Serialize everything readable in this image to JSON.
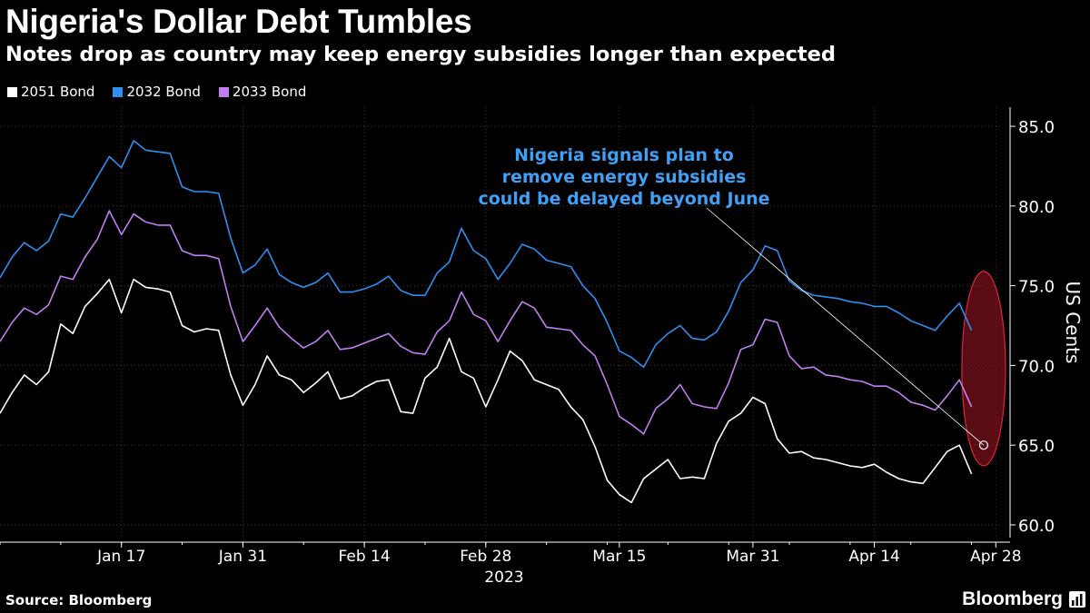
{
  "header": {
    "title": "Nigeria's Dollar Debt Tumbles",
    "subtitle": "Notes drop as country may keep energy subsidies longer than expected"
  },
  "footer": {
    "source": "Source: Bloomberg",
    "brand": "Bloomberg"
  },
  "colors": {
    "background": "#000000",
    "bond_2051": "#ffffff",
    "bond_2032": "#2f8ff0",
    "bond_2033": "#c07ff0",
    "annotation_text": "#3fa0f5",
    "highlight": "#b81a2a"
  },
  "chart_data": {
    "type": "line",
    "title": "Nigeria's Dollar Debt Tumbles",
    "ylabel": "US Cents",
    "xlabel": "2023",
    "ylim": [
      59.2,
      86.2
    ],
    "yticks": [
      "85.0",
      "80.0",
      "75.0",
      "70.0",
      "65.0",
      "60.0"
    ],
    "ytick_values": [
      85,
      80,
      75,
      70,
      65,
      60
    ],
    "xticks": [
      {
        "label": "Jan 17",
        "index": 10
      },
      {
        "label": "Jan 31",
        "index": 20
      },
      {
        "label": "Feb 14",
        "index": 30
      },
      {
        "label": "Feb 28",
        "index": 40
      },
      {
        "label": "Mar 15",
        "index": 51
      },
      {
        "label": "Mar 31",
        "index": 62
      },
      {
        "label": "Apr 14",
        "index": 72
      },
      {
        "label": "Apr 28",
        "index": 82
      }
    ],
    "x_range": [
      0,
      82.5
    ],
    "year_label": "2023",
    "series": [
      {
        "name": "2051 Bond",
        "end_label": "63.2",
        "values": [
          67.0,
          68.3,
          69.4,
          68.8,
          69.6,
          72.6,
          72.0,
          73.7,
          74.5,
          75.4,
          73.3,
          75.4,
          74.9,
          74.8,
          74.6,
          72.5,
          72.1,
          72.3,
          72.2,
          69.4,
          67.5,
          68.8,
          70.6,
          69.4,
          69.1,
          68.3,
          68.9,
          69.6,
          67.9,
          68.1,
          68.6,
          69.0,
          69.1,
          67.1,
          67.0,
          69.2,
          69.9,
          71.7,
          69.6,
          69.2,
          67.4,
          69.1,
          70.9,
          70.3,
          69.1,
          68.8,
          68.5,
          67.4,
          66.6,
          64.9,
          62.8,
          61.9,
          61.4,
          62.9,
          63.5,
          64.1,
          62.9,
          63.0,
          62.9,
          65.1,
          66.5,
          67.0,
          68.0,
          67.6,
          65.4,
          64.5,
          64.6,
          64.2,
          64.1,
          63.9,
          63.7,
          63.6,
          63.8,
          63.3,
          62.9,
          62.7,
          62.6,
          63.6,
          64.6,
          65.0,
          63.2
        ],
        "end_index": 82
      },
      {
        "name": "2032 Bond",
        "end_label": "72.2",
        "values": [
          75.5,
          76.8,
          77.7,
          77.2,
          77.8,
          79.5,
          79.3,
          80.5,
          81.8,
          83.1,
          82.4,
          84.1,
          83.5,
          83.4,
          83.3,
          81.2,
          80.9,
          80.9,
          80.8,
          78.0,
          75.8,
          76.3,
          77.3,
          75.7,
          75.2,
          74.9,
          75.2,
          75.8,
          74.6,
          74.6,
          74.8,
          75.1,
          75.6,
          74.7,
          74.4,
          74.4,
          75.8,
          76.5,
          78.6,
          77.2,
          76.7,
          75.4,
          76.4,
          77.6,
          77.3,
          76.6,
          76.4,
          76.2,
          75.0,
          74.2,
          72.7,
          70.9,
          70.5,
          69.9,
          71.3,
          72.0,
          72.5,
          71.7,
          71.6,
          72.1,
          73.4,
          75.2,
          76.0,
          77.5,
          77.2,
          75.3,
          74.7,
          74.4,
          74.3,
          74.2,
          74.0,
          73.9,
          73.7,
          73.7,
          73.3,
          72.8,
          72.5,
          72.2,
          73.1,
          73.9,
          72.2
        ],
        "end_index": 82
      },
      {
        "name": "2033 Bond",
        "end_label": "67.4",
        "values": [
          71.5,
          72.7,
          73.6,
          73.2,
          73.8,
          75.6,
          75.4,
          76.8,
          77.9,
          79.7,
          78.2,
          79.5,
          79.0,
          78.8,
          78.8,
          77.2,
          76.9,
          76.9,
          76.7,
          73.7,
          71.5,
          72.5,
          73.6,
          72.4,
          71.7,
          71.1,
          71.5,
          72.2,
          71.0,
          71.1,
          71.4,
          71.7,
          72.0,
          71.2,
          70.8,
          70.7,
          72.1,
          72.8,
          74.6,
          73.2,
          72.8,
          71.5,
          72.8,
          74.0,
          73.6,
          72.4,
          72.3,
          72.2,
          71.3,
          70.6,
          68.8,
          66.8,
          66.3,
          65.7,
          67.3,
          67.9,
          68.8,
          67.6,
          67.4,
          67.3,
          68.9,
          71.0,
          71.3,
          72.9,
          72.7,
          70.6,
          69.8,
          69.9,
          69.4,
          69.3,
          69.1,
          69.0,
          68.7,
          68.7,
          68.3,
          67.7,
          67.5,
          67.2,
          68.1,
          69.1,
          67.4
        ],
        "end_index": 82
      }
    ],
    "annotation": {
      "lines": [
        "Nigeria signals plan to",
        "remove energy subsidies",
        "could be delayed beyond June"
      ],
      "target_index": 81,
      "target_value": 65.0
    },
    "highlight": {
      "center_index": 81,
      "center_value": 69.8
    }
  }
}
